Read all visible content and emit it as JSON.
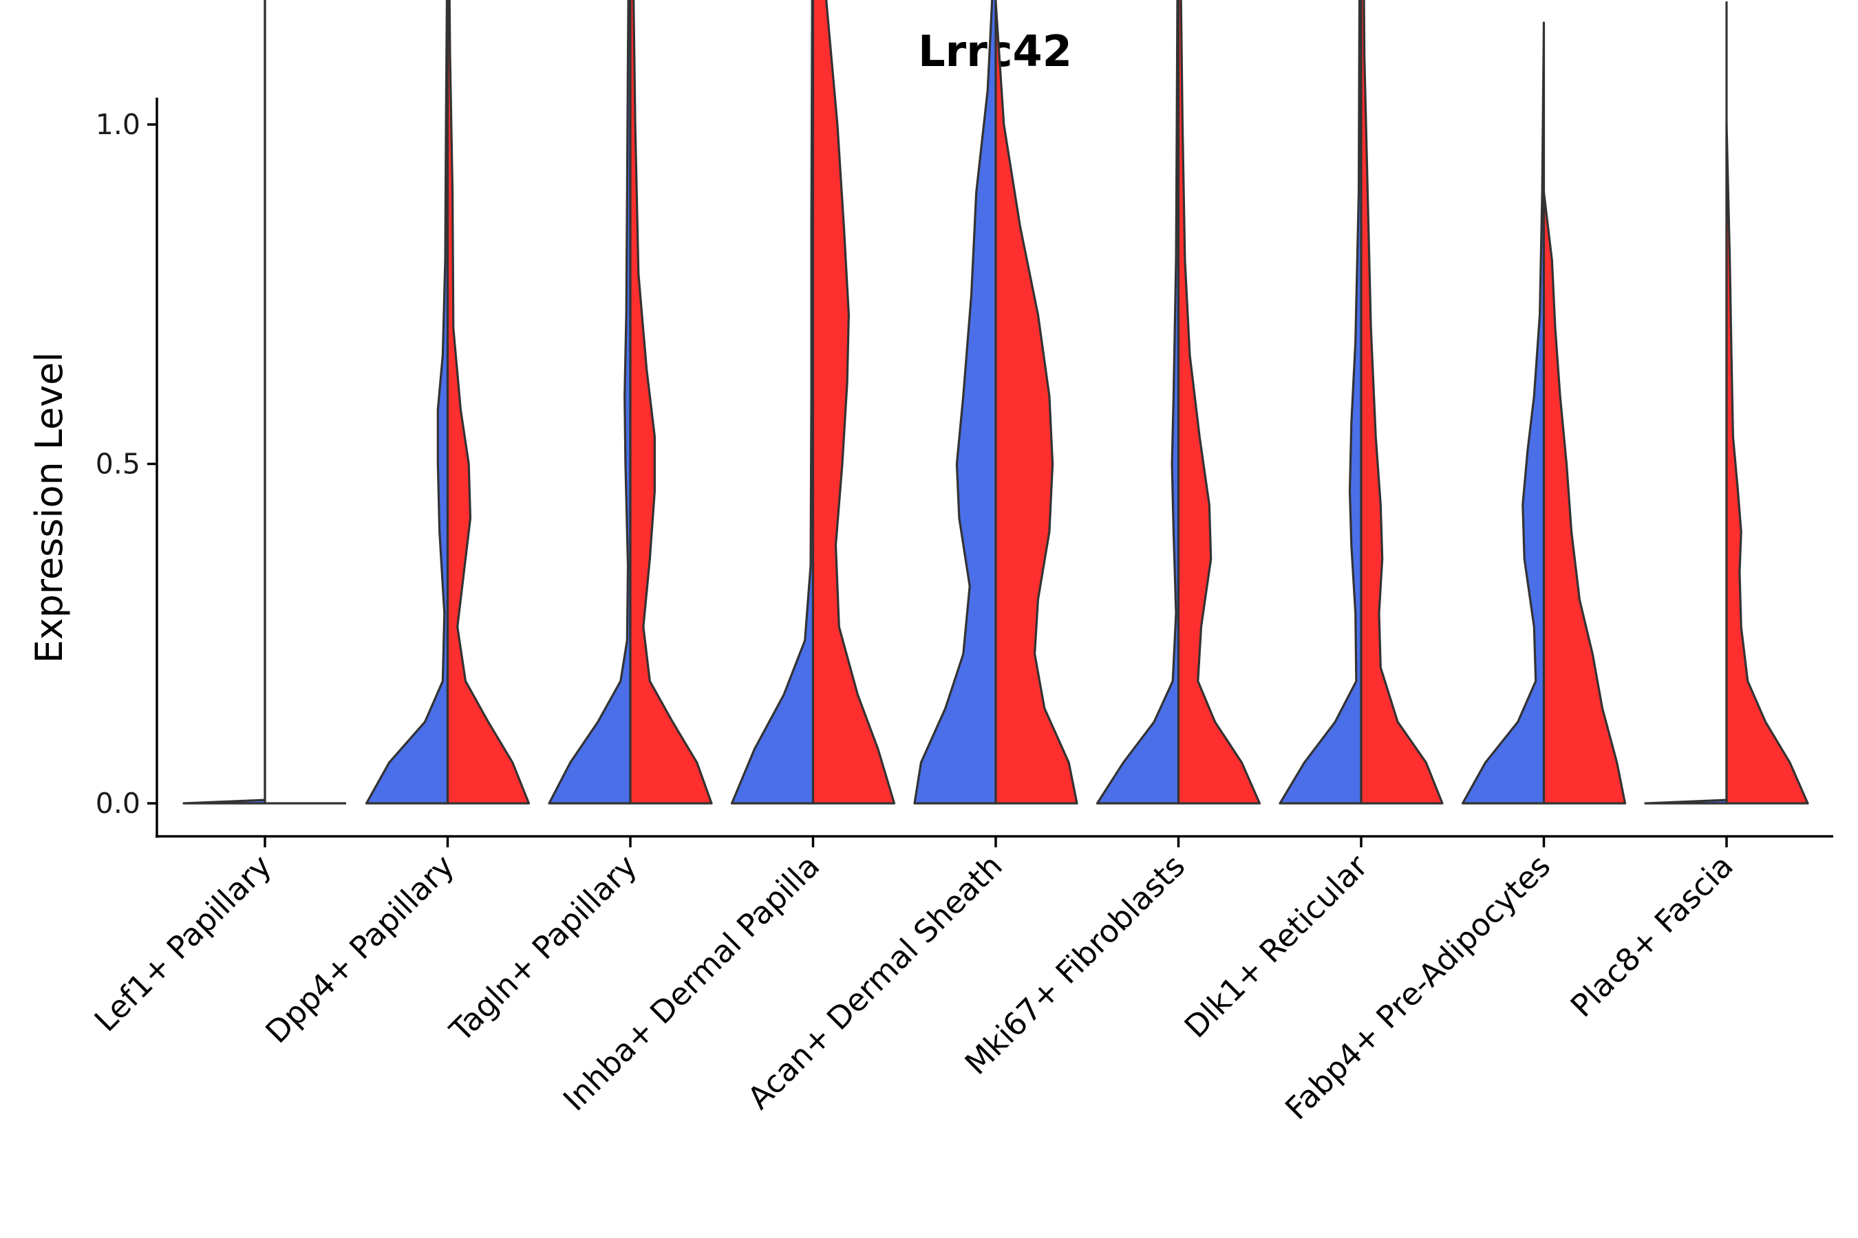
{
  "chart_data": {
    "type": "violin",
    "title": "Lrrc42",
    "xlabel": "",
    "ylabel": "Expression Level",
    "ylim": [
      -0.1,
      2.08
    ],
    "yticks": [
      "0.0",
      "0.5",
      "1.0",
      "1.5",
      "2.0"
    ],
    "colors": {
      "group1": "#4A6FE8",
      "group2": "#FF2F2F",
      "outline": "#333333"
    },
    "categories": [
      "Lef1+ Papillary",
      "Dpp4+ Papillary",
      "Tagln+ Papillary",
      "Inhba+ Dermal Papilla",
      "Acan+ Dermal Sheath",
      "Mki67+ Fibroblasts",
      "Dlk1+ Reticular",
      "Fabp4+ Pre-Adipocytes",
      "Plac8+ Fascia"
    ],
    "series": [
      {
        "name": "group1",
        "max_values": [
          1.82,
          1.33,
          1.55,
          1.87,
          1.29,
          1.5,
          1.72,
          1.15,
          1.18
        ],
        "profiles": [
          [
            [
              0,
              1.0
            ],
            [
              0.005,
              0.0
            ],
            [
              1.82,
              0.0
            ]
          ],
          [
            [
              0,
              1.0
            ],
            [
              0.06,
              0.72
            ],
            [
              0.12,
              0.28
            ],
            [
              0.18,
              0.06
            ],
            [
              0.28,
              0.04
            ],
            [
              0.4,
              0.1
            ],
            [
              0.5,
              0.12
            ],
            [
              0.58,
              0.12
            ],
            [
              0.66,
              0.06
            ],
            [
              0.8,
              0.03
            ],
            [
              1.0,
              0.02
            ],
            [
              1.33,
              0.0
            ]
          ],
          [
            [
              0,
              1.0
            ],
            [
              0.06,
              0.74
            ],
            [
              0.12,
              0.4
            ],
            [
              0.18,
              0.12
            ],
            [
              0.24,
              0.04
            ],
            [
              0.35,
              0.03
            ],
            [
              0.5,
              0.06
            ],
            [
              0.6,
              0.07
            ],
            [
              0.72,
              0.05
            ],
            [
              0.9,
              0.04
            ],
            [
              1.1,
              0.03
            ],
            [
              1.55,
              0.0
            ]
          ],
          [
            [
              0,
              1.0
            ],
            [
              0.08,
              0.72
            ],
            [
              0.16,
              0.36
            ],
            [
              0.24,
              0.1
            ],
            [
              0.35,
              0.03
            ],
            [
              0.6,
              0.02
            ],
            [
              0.85,
              0.02
            ],
            [
              1.2,
              0.01
            ],
            [
              1.87,
              0.0
            ]
          ],
          [
            [
              0,
              1.0
            ],
            [
              0.06,
              0.92
            ],
            [
              0.14,
              0.62
            ],
            [
              0.22,
              0.4
            ],
            [
              0.32,
              0.32
            ],
            [
              0.42,
              0.45
            ],
            [
              0.5,
              0.48
            ],
            [
              0.6,
              0.4
            ],
            [
              0.75,
              0.3
            ],
            [
              0.9,
              0.24
            ],
            [
              1.05,
              0.1
            ],
            [
              1.29,
              0.0
            ]
          ],
          [
            [
              0,
              1.0
            ],
            [
              0.06,
              0.68
            ],
            [
              0.12,
              0.3
            ],
            [
              0.18,
              0.07
            ],
            [
              0.28,
              0.03
            ],
            [
              0.4,
              0.06
            ],
            [
              0.5,
              0.08
            ],
            [
              0.6,
              0.06
            ],
            [
              0.8,
              0.03
            ],
            [
              1.0,
              0.02
            ],
            [
              1.5,
              0.0
            ]
          ],
          [
            [
              0,
              1.0
            ],
            [
              0.06,
              0.7
            ],
            [
              0.12,
              0.32
            ],
            [
              0.18,
              0.06
            ],
            [
              0.28,
              0.07
            ],
            [
              0.38,
              0.12
            ],
            [
              0.46,
              0.14
            ],
            [
              0.56,
              0.12
            ],
            [
              0.68,
              0.07
            ],
            [
              0.9,
              0.03
            ],
            [
              1.2,
              0.02
            ],
            [
              1.72,
              0.0
            ]
          ],
          [
            [
              0,
              1.0
            ],
            [
              0.06,
              0.72
            ],
            [
              0.12,
              0.32
            ],
            [
              0.18,
              0.1
            ],
            [
              0.26,
              0.12
            ],
            [
              0.36,
              0.24
            ],
            [
              0.44,
              0.26
            ],
            [
              0.52,
              0.2
            ],
            [
              0.6,
              0.12
            ],
            [
              0.72,
              0.05
            ],
            [
              0.9,
              0.02
            ],
            [
              1.15,
              0.0
            ]
          ],
          [
            [
              0,
              1.0
            ],
            [
              0.005,
              0.0
            ],
            [
              1.18,
              0.0
            ]
          ]
        ]
      },
      {
        "name": "group2",
        "max_values": [
          0.0,
          1.47,
          1.54,
          1.73,
          1.18,
          1.65,
          1.98,
          0.9,
          1.0
        ],
        "profiles": [
          [
            [
              0,
              0.0
            ],
            [
              0.0,
              0.0
            ]
          ],
          [
            [
              0,
              1.0
            ],
            [
              0.06,
              0.8
            ],
            [
              0.12,
              0.5
            ],
            [
              0.18,
              0.22
            ],
            [
              0.26,
              0.12
            ],
            [
              0.34,
              0.2
            ],
            [
              0.42,
              0.28
            ],
            [
              0.5,
              0.26
            ],
            [
              0.58,
              0.16
            ],
            [
              0.7,
              0.07
            ],
            [
              0.9,
              0.06
            ],
            [
              1.1,
              0.03
            ],
            [
              1.47,
              0.0
            ]
          ],
          [
            [
              0,
              1.0
            ],
            [
              0.06,
              0.82
            ],
            [
              0.12,
              0.52
            ],
            [
              0.18,
              0.24
            ],
            [
              0.26,
              0.16
            ],
            [
              0.36,
              0.24
            ],
            [
              0.46,
              0.3
            ],
            [
              0.54,
              0.3
            ],
            [
              0.64,
              0.2
            ],
            [
              0.78,
              0.1
            ],
            [
              1.0,
              0.06
            ],
            [
              1.54,
              0.0
            ]
          ],
          [
            [
              0,
              1.0
            ],
            [
              0.08,
              0.8
            ],
            [
              0.16,
              0.55
            ],
            [
              0.26,
              0.32
            ],
            [
              0.38,
              0.28
            ],
            [
              0.5,
              0.36
            ],
            [
              0.62,
              0.42
            ],
            [
              0.72,
              0.44
            ],
            [
              0.85,
              0.38
            ],
            [
              1.0,
              0.3
            ],
            [
              1.2,
              0.15
            ],
            [
              1.4,
              0.06
            ],
            [
              1.73,
              0.0
            ]
          ],
          [
            [
              0,
              1.0
            ],
            [
              0.06,
              0.9
            ],
            [
              0.14,
              0.6
            ],
            [
              0.22,
              0.48
            ],
            [
              0.3,
              0.52
            ],
            [
              0.4,
              0.66
            ],
            [
              0.5,
              0.7
            ],
            [
              0.6,
              0.66
            ],
            [
              0.72,
              0.52
            ],
            [
              0.85,
              0.3
            ],
            [
              1.0,
              0.1
            ],
            [
              1.18,
              0.0
            ]
          ],
          [
            [
              0,
              1.0
            ],
            [
              0.06,
              0.78
            ],
            [
              0.12,
              0.45
            ],
            [
              0.18,
              0.24
            ],
            [
              0.26,
              0.28
            ],
            [
              0.36,
              0.4
            ],
            [
              0.44,
              0.38
            ],
            [
              0.54,
              0.26
            ],
            [
              0.66,
              0.14
            ],
            [
              0.8,
              0.08
            ],
            [
              1.0,
              0.05
            ],
            [
              1.2,
              0.03
            ],
            [
              1.65,
              0.0
            ]
          ],
          [
            [
              0,
              1.0
            ],
            [
              0.06,
              0.8
            ],
            [
              0.12,
              0.45
            ],
            [
              0.2,
              0.24
            ],
            [
              0.28,
              0.22
            ],
            [
              0.36,
              0.26
            ],
            [
              0.44,
              0.24
            ],
            [
              0.54,
              0.18
            ],
            [
              0.7,
              0.12
            ],
            [
              0.9,
              0.08
            ],
            [
              1.1,
              0.04
            ],
            [
              1.4,
              0.02
            ],
            [
              1.98,
              0.0
            ]
          ],
          [
            [
              0,
              1.0
            ],
            [
              0.06,
              0.9
            ],
            [
              0.14,
              0.72
            ],
            [
              0.22,
              0.6
            ],
            [
              0.3,
              0.44
            ],
            [
              0.4,
              0.34
            ],
            [
              0.5,
              0.28
            ],
            [
              0.6,
              0.2
            ],
            [
              0.7,
              0.14
            ],
            [
              0.8,
              0.1
            ],
            [
              0.9,
              0.0
            ]
          ],
          [
            [
              0,
              1.0
            ],
            [
              0.06,
              0.78
            ],
            [
              0.12,
              0.48
            ],
            [
              0.18,
              0.26
            ],
            [
              0.26,
              0.18
            ],
            [
              0.34,
              0.16
            ],
            [
              0.4,
              0.18
            ],
            [
              0.46,
              0.14
            ],
            [
              0.54,
              0.08
            ],
            [
              0.66,
              0.06
            ],
            [
              0.8,
              0.04
            ],
            [
              1.0,
              0.0
            ]
          ]
        ]
      }
    ]
  }
}
